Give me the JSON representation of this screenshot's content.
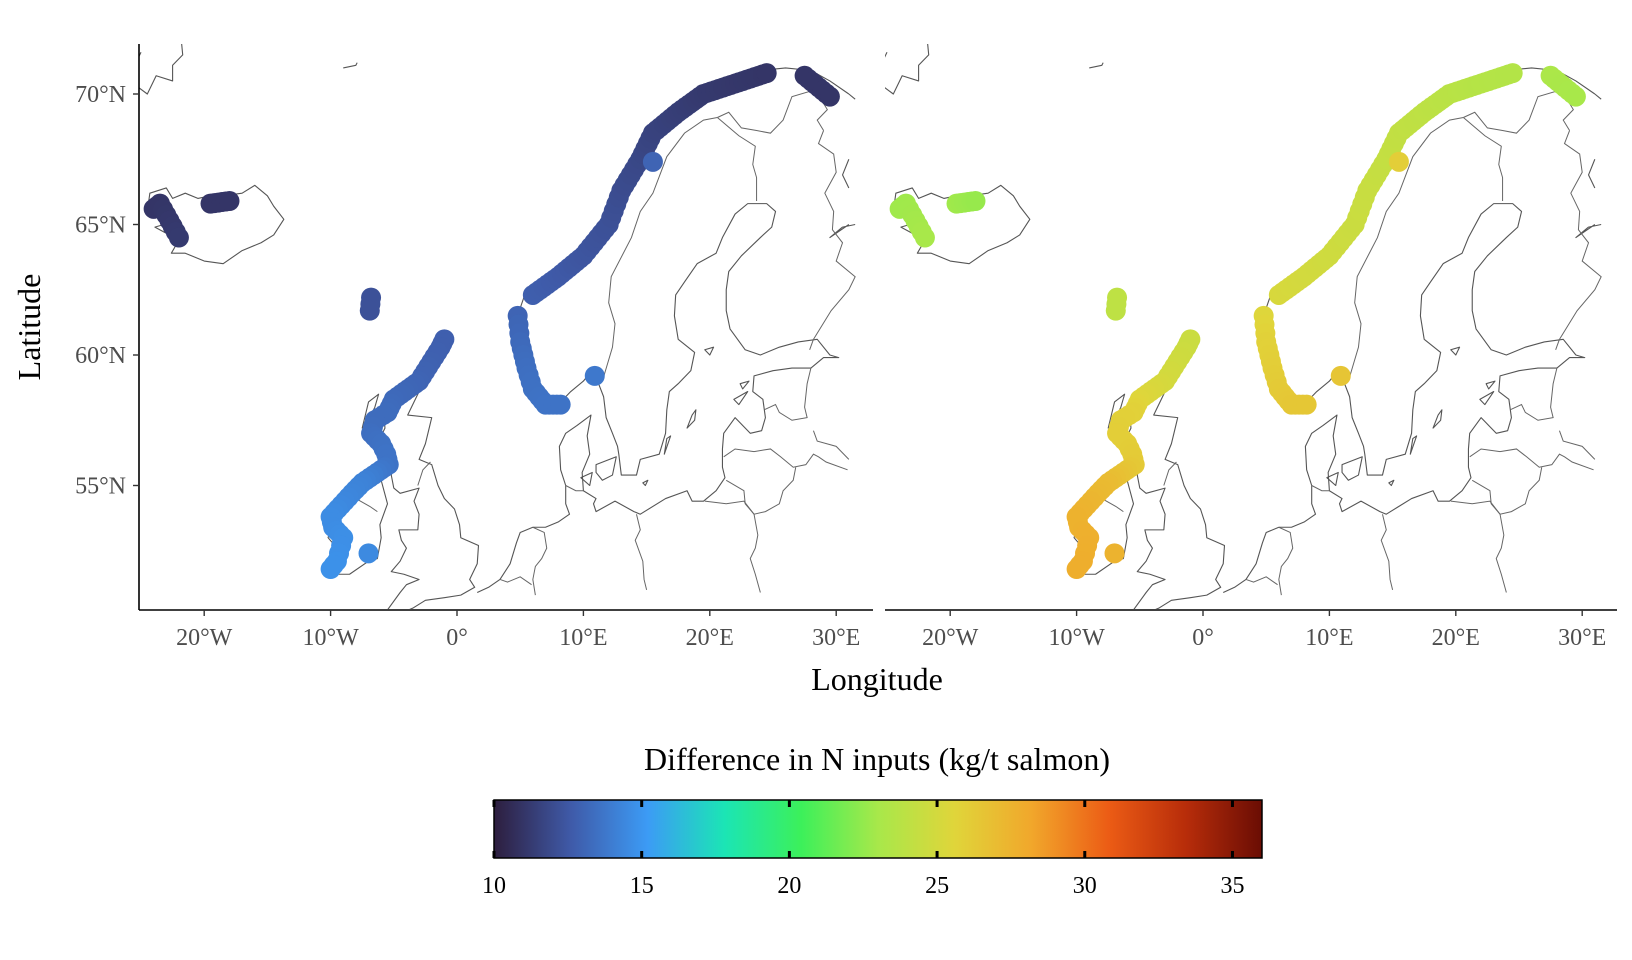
{
  "chart_data": {
    "type": "map",
    "title": "",
    "xlabel": "Longitude",
    "ylabel": "Latitude",
    "x_ticks": [
      "20°W",
      "10°W",
      "0°",
      "10°E",
      "20°E",
      "30°E"
    ],
    "y_ticks": [
      "70°N",
      "65°N",
      "60°N",
      "55°N"
    ],
    "xlim": [
      -25.5,
      31
    ],
    "ylim": [
      51,
      72
    ],
    "panels": [
      {
        "scenario": "left",
        "color_value_range": [
          11,
          15
        ],
        "sites": "farm locations along coasts of Iceland, Ireland, Scotland, Faroe/Shetland and Norway"
      },
      {
        "scenario": "right",
        "color_value_range": [
          23,
          28
        ],
        "sites": "same farm locations"
      }
    ],
    "sites": [
      {
        "lon": -24.0,
        "lat": 65.6,
        "v1": 11.0,
        "v2": 22.8
      },
      {
        "lon": -23.5,
        "lat": 65.8,
        "v1": 11.0,
        "v2": 22.8
      },
      {
        "lon": -22.0,
        "lat": 64.5,
        "v1": 11.2,
        "v2": 23.0
      },
      {
        "lon": -19.5,
        "lat": 65.8,
        "v1": 11.0,
        "v2": 22.8
      },
      {
        "lon": -18.0,
        "lat": 65.9,
        "v1": 11.0,
        "v2": 22.6
      },
      {
        "lon": -6.8,
        "lat": 62.2,
        "v1": 12.2,
        "v2": 24.0
      },
      {
        "lon": -6.9,
        "lat": 61.7,
        "v1": 12.2,
        "v2": 24.0
      },
      {
        "lon": -1.0,
        "lat": 60.6,
        "v1": 12.8,
        "v2": 24.6
      },
      {
        "lon": -1.3,
        "lat": 60.3,
        "v1": 12.8,
        "v2": 24.6
      },
      {
        "lon": -3.0,
        "lat": 59.0,
        "v1": 13.0,
        "v2": 25.0
      },
      {
        "lon": -5.0,
        "lat": 58.3,
        "v1": 13.2,
        "v2": 25.5
      },
      {
        "lon": -5.5,
        "lat": 57.8,
        "v1": 13.3,
        "v2": 25.8
      },
      {
        "lon": -6.5,
        "lat": 57.5,
        "v1": 13.3,
        "v2": 25.9
      },
      {
        "lon": -6.8,
        "lat": 57.0,
        "v1": 13.4,
        "v2": 26.0
      },
      {
        "lon": -6.0,
        "lat": 56.6,
        "v1": 13.5,
        "v2": 26.0
      },
      {
        "lon": -5.6,
        "lat": 56.2,
        "v1": 13.6,
        "v2": 26.1
      },
      {
        "lon": -5.4,
        "lat": 55.8,
        "v1": 13.6,
        "v2": 26.2
      },
      {
        "lon": -7.5,
        "lat": 55.1,
        "v1": 14.2,
        "v2": 27.0
      },
      {
        "lon": -8.3,
        "lat": 54.7,
        "v1": 14.3,
        "v2": 27.2
      },
      {
        "lon": -10.0,
        "lat": 53.8,
        "v1": 14.6,
        "v2": 27.6
      },
      {
        "lon": -9.8,
        "lat": 53.4,
        "v1": 14.6,
        "v2": 27.6
      },
      {
        "lon": -9.0,
        "lat": 53.0,
        "v1": 14.7,
        "v2": 27.7
      },
      {
        "lon": -9.5,
        "lat": 52.1,
        "v1": 14.8,
        "v2": 27.8
      },
      {
        "lon": -10.0,
        "lat": 51.8,
        "v1": 14.8,
        "v2": 27.8
      },
      {
        "lon": -7.0,
        "lat": 52.4,
        "v1": 14.5,
        "v2": 27.5
      },
      {
        "lon": 4.8,
        "lat": 61.5,
        "v1": 13.0,
        "v2": 25.5
      },
      {
        "lon": 5.0,
        "lat": 60.5,
        "v1": 13.2,
        "v2": 25.8
      },
      {
        "lon": 5.5,
        "lat": 59.5,
        "v1": 13.4,
        "v2": 26.0
      },
      {
        "lon": 6.0,
        "lat": 58.7,
        "v1": 13.5,
        "v2": 26.2
      },
      {
        "lon": 7.0,
        "lat": 58.1,
        "v1": 13.6,
        "v2": 26.4
      },
      {
        "lon": 8.2,
        "lat": 58.1,
        "v1": 13.6,
        "v2": 26.4
      },
      {
        "lon": 10.9,
        "lat": 59.2,
        "v1": 13.8,
        "v2": 26.5
      },
      {
        "lon": 6.0,
        "lat": 62.3,
        "v1": 12.8,
        "v2": 25.2
      },
      {
        "lon": 8.0,
        "lat": 63.0,
        "v1": 12.6,
        "v2": 25.0
      },
      {
        "lon": 10.0,
        "lat": 63.8,
        "v1": 12.4,
        "v2": 24.8
      },
      {
        "lon": 12.0,
        "lat": 65.0,
        "v1": 12.2,
        "v2": 24.6
      },
      {
        "lon": 13.0,
        "lat": 66.3,
        "v1": 12.0,
        "v2": 24.5
      },
      {
        "lon": 14.5,
        "lat": 67.5,
        "v1": 11.8,
        "v2": 24.3
      },
      {
        "lon": 15.5,
        "lat": 68.5,
        "v1": 11.6,
        "v2": 24.2
      },
      {
        "lon": 17.5,
        "lat": 69.3,
        "v1": 11.4,
        "v2": 24.0
      },
      {
        "lon": 19.5,
        "lat": 70.0,
        "v1": 11.2,
        "v2": 23.8
      },
      {
        "lon": 22.0,
        "lat": 70.4,
        "v1": 11.1,
        "v2": 23.6
      },
      {
        "lon": 24.5,
        "lat": 70.8,
        "v1": 11.0,
        "v2": 23.5
      },
      {
        "lon": 27.5,
        "lat": 70.7,
        "v1": 11.0,
        "v2": 23.2
      },
      {
        "lon": 29.5,
        "lat": 69.9,
        "v1": 11.0,
        "v2": 23.0
      },
      {
        "lon": 15.5,
        "lat": 67.4,
        "v1": 13.0,
        "v2": 26.0
      }
    ]
  },
  "legend": {
    "title": "Difference in N inputs (kg/t salmon)",
    "ticks": [
      "10",
      "15",
      "20",
      "25",
      "30",
      "35"
    ],
    "tick_values": [
      10,
      15,
      20,
      25,
      30,
      35
    ],
    "range": [
      10,
      36
    ],
    "colors": [
      "#2d1e3e",
      "#3f5aa8",
      "#3c9bf5",
      "#1be5b5",
      "#3cf05a",
      "#a8e84a",
      "#e0d53a",
      "#f1a72b",
      "#ec5c15",
      "#b82d0a",
      "#6a0d04"
    ]
  }
}
